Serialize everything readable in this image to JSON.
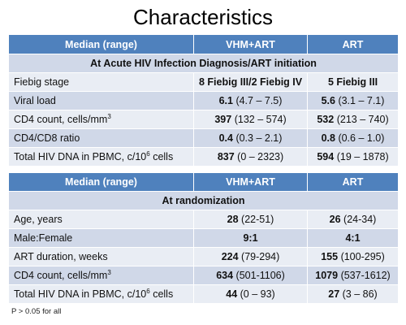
{
  "title": "Characteristics",
  "table1": {
    "headers": [
      "Median (range)",
      "VHM+ART",
      "ART"
    ],
    "section": "At Acute HIV Infection Diagnosis/ART initiation",
    "rows": [
      {
        "label": "Fiebig stage",
        "sup": "",
        "label_tail": "",
        "vhm_bold": "8 Fiebig III/2 Fiebig IV",
        "vhm_range": "",
        "art_bold": "5 Fiebig III",
        "art_range": ""
      },
      {
        "label": "Viral load",
        "sup": "",
        "label_tail": "",
        "vhm_bold": "6.1",
        "vhm_range": "(4.7 – 7.5)",
        "art_bold": "5.6",
        "art_range": "(3.1 – 7.1)"
      },
      {
        "label": "CD4 count, cells/mm",
        "sup": "3",
        "label_tail": "",
        "vhm_bold": "397",
        "vhm_range": "(132 – 574)",
        "art_bold": "532",
        "art_range": "(213 – 740)"
      },
      {
        "label": "CD4/CD8 ratio",
        "sup": "",
        "label_tail": "",
        "vhm_bold": "0.4",
        "vhm_range": "(0.3 – 2.1)",
        "art_bold": "0.8",
        "art_range": "(0.6 – 1.0)"
      },
      {
        "label": "Total HIV DNA in PBMC, c/10",
        "sup": "6",
        "label_tail": " cells",
        "vhm_bold": "837",
        "vhm_range": "(0 – 2323)",
        "art_bold": "594",
        "art_range": "(19 – 1878)"
      }
    ]
  },
  "table2": {
    "headers": [
      "Median (range)",
      "VHM+ART",
      "ART"
    ],
    "section": "At randomization",
    "rows": [
      {
        "label": "Age, years",
        "sup": "",
        "label_tail": "",
        "vhm_bold": "28",
        "vhm_range": "(22-51)",
        "art_bold": "26",
        "art_range": "(24-34)"
      },
      {
        "label": "Male:Female",
        "sup": "",
        "label_tail": "",
        "vhm_bold": "9:1",
        "vhm_range": "",
        "art_bold": "4:1",
        "art_range": ""
      },
      {
        "label": "ART duration, weeks",
        "sup": "",
        "label_tail": "",
        "vhm_bold": "224",
        "vhm_range": "(79-294)",
        "art_bold": "155",
        "art_range": "(100-295)"
      },
      {
        "label": "CD4 count, cells/mm",
        "sup": "3",
        "label_tail": "",
        "vhm_bold": "634",
        "vhm_range": "(501-1106)",
        "art_bold": "1079",
        "art_range": "(537-1612)"
      },
      {
        "label": "Total HIV DNA in PBMC, c/10",
        "sup": "6",
        "label_tail": " cells",
        "vhm_bold": "44",
        "vhm_range": "(0 – 93)",
        "art_bold": "27",
        "art_range": "(3 – 86)"
      }
    ]
  },
  "footnote": "P > 0.05 for all"
}
